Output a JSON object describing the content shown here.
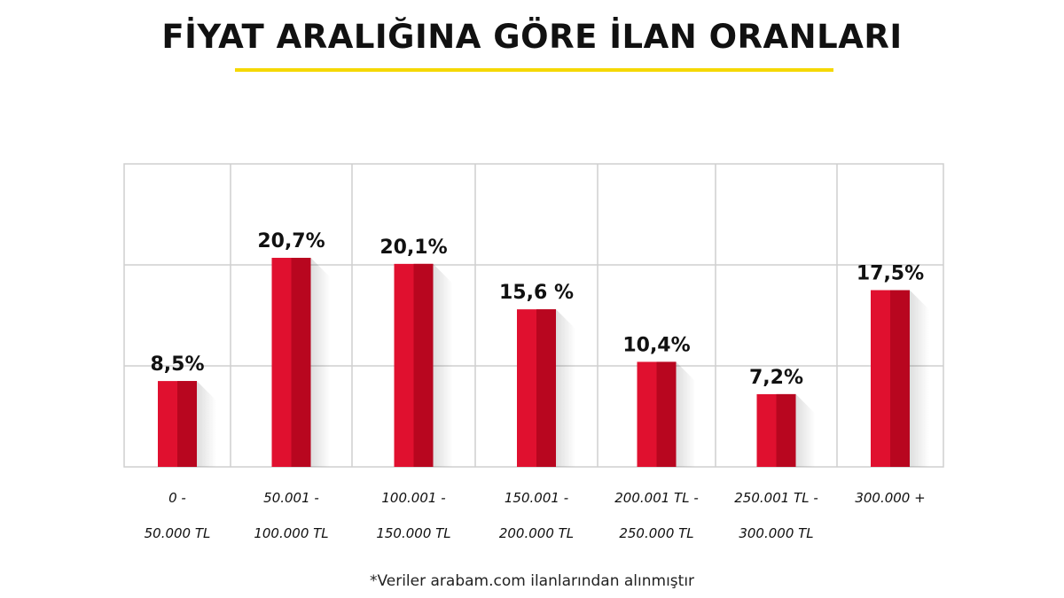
{
  "title": "FİYAT ARALIĞINA GÖRE İLAN ORANLARI",
  "footnote": "*Veriler arabam.com ilanlarından alınmıştır",
  "colors": {
    "bar_main": "#e0102f",
    "bar_shade": "#b8061f",
    "underline": "#f5d800",
    "grid": "#cfcfcf"
  },
  "chart_data": {
    "type": "bar",
    "title": "FİYAT ARALIĞINA GÖRE İLAN ORANLARI",
    "xlabel": "",
    "ylabel": "",
    "ylim": [
      0,
      30
    ],
    "grid": true,
    "categories": [
      [
        "0 -",
        "50.000 TL"
      ],
      [
        "50.001 -",
        "100.000 TL"
      ],
      [
        "100.001 -",
        "150.000 TL"
      ],
      [
        "150.001 -",
        "200.000 TL"
      ],
      [
        "200.001 TL -",
        "250.000 TL"
      ],
      [
        "250.001 TL -",
        "300.000 TL"
      ],
      [
        "300.000 +"
      ]
    ],
    "values": [
      8.5,
      20.7,
      20.1,
      15.6,
      10.4,
      7.2,
      17.5
    ],
    "value_labels": [
      "8,5%",
      "20,7%",
      "20,1%",
      "15,6 %",
      "10,4%",
      "7,2%",
      "17,5%"
    ]
  }
}
